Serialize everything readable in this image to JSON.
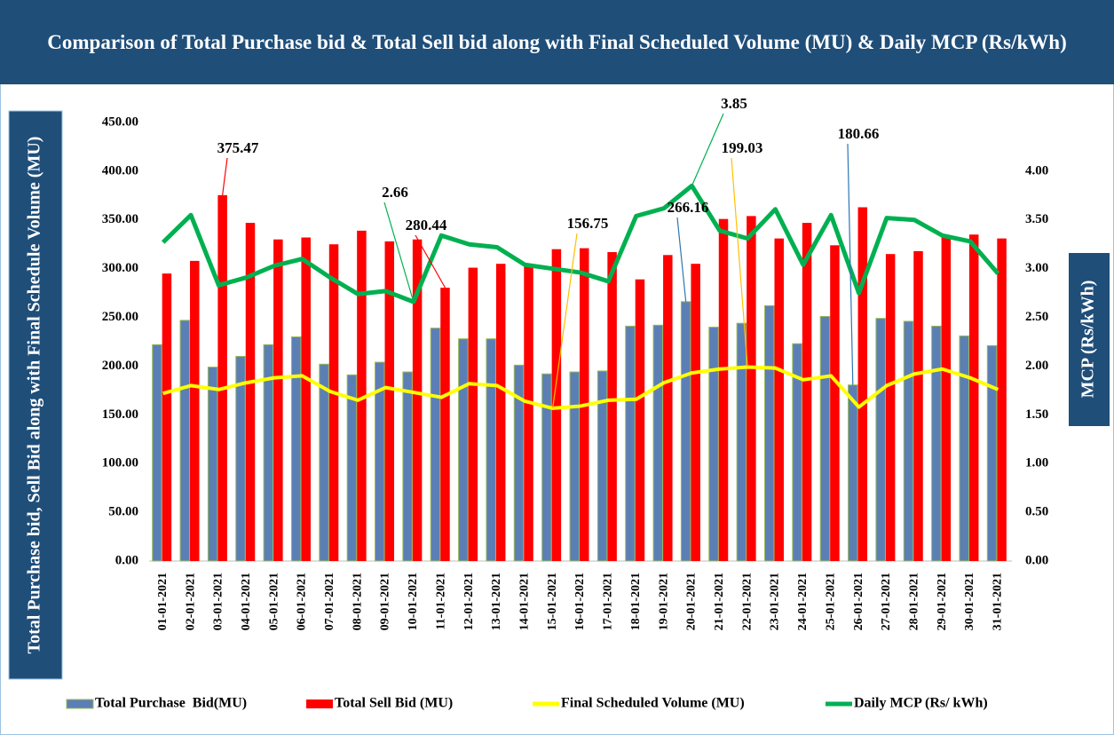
{
  "chart_data": {
    "type": "bar_line",
    "title": "Comparison of Total Purchase bid & Total Sell bid along with Final Scheduled Volume (MU) & Daily MCP (Rs/kWh)",
    "ylabel": "Total Purchase bid, Sell Bid along with Final Schedule Volume (MU)",
    "y2label": "MCP (Rs/kWh)",
    "categories": [
      "01-01-2021",
      "02-01-2021",
      "03-01-2021",
      "04-01-2021",
      "05-01-2021",
      "06-01-2021",
      "07-01-2021",
      "08-01-2021",
      "09-01-2021",
      "10-01-2021",
      "11-01-2021",
      "12-01-2021",
      "13-01-2021",
      "14-01-2021",
      "15-01-2021",
      "16-01-2021",
      "17-01-2021",
      "18-01-2021",
      "19-01-2021",
      "20-01-2021",
      "21-01-2021",
      "22-01-2021",
      "23-01-2021",
      "24-01-2021",
      "25-01-2021",
      "26-01-2021",
      "27-01-2021",
      "28-01-2021",
      "29-01-2021",
      "30-01-2021",
      "31-01-2021"
    ],
    "series": [
      {
        "name": "Total Purchase  Bid(MU)",
        "kind": "bar",
        "color": "#5b7fb5",
        "values": [
          222,
          247,
          199,
          210,
          222,
          230,
          202,
          191,
          204,
          194,
          239,
          228,
          228,
          201,
          192,
          194,
          195,
          241,
          242,
          266.16,
          240,
          244,
          262,
          223,
          251,
          180.66,
          249,
          246,
          241,
          231,
          221
        ]
      },
      {
        "name": "Total Sell Bid (MU)",
        "kind": "bar",
        "color": "#ff0000",
        "values": [
          295,
          308,
          375.47,
          347,
          330,
          332,
          325,
          339,
          328,
          330,
          280.44,
          301,
          305,
          304,
          320,
          321,
          317,
          289,
          314,
          305,
          351,
          354,
          331,
          347,
          324,
          363,
          315,
          318,
          333,
          335,
          331
        ]
      },
      {
        "name": "Final Scheduled Volume (MU)",
        "kind": "line",
        "color": "#ffff00",
        "values": [
          172,
          180,
          176,
          183,
          188,
          190,
          174,
          165,
          178,
          173,
          168,
          182,
          180,
          164,
          156.75,
          159,
          165,
          166,
          183,
          193,
          197,
          199.03,
          198,
          186,
          190,
          158,
          180,
          192,
          197,
          188,
          176
        ]
      },
      {
        "name": "Daily MCP (Rs/ kWh)",
        "kind": "line",
        "axis": "y2",
        "color": "#00b050",
        "values": [
          3.27,
          3.55,
          2.83,
          2.91,
          3.03,
          3.1,
          2.91,
          2.74,
          2.77,
          2.66,
          3.34,
          3.25,
          3.22,
          3.04,
          3.0,
          2.96,
          2.87,
          3.54,
          3.62,
          3.85,
          3.39,
          3.31,
          3.61,
          3.04,
          3.55,
          2.75,
          3.52,
          3.5,
          3.34,
          3.28,
          2.95
        ]
      }
    ],
    "ylim": [
      0,
      450
    ],
    "yticks": [
      {
        "value": 0,
        "label": "0.00"
      },
      {
        "value": 50,
        "label": "50.00"
      },
      {
        "value": 100,
        "label": "100.00"
      },
      {
        "value": 150,
        "label": "150.00"
      },
      {
        "value": 200,
        "label": "200.00"
      },
      {
        "value": 250,
        "label": "250.00"
      },
      {
        "value": 300,
        "label": "300.00"
      },
      {
        "value": 350,
        "label": "350.00"
      },
      {
        "value": 400,
        "label": "400.00"
      },
      {
        "value": 450,
        "label": "450.00"
      }
    ],
    "y2lim": [
      0,
      4.5
    ],
    "y2ticks": [
      {
        "value": 0,
        "label": "0.00"
      },
      {
        "value": 0.5,
        "label": "0.50"
      },
      {
        "value": 1,
        "label": "1.00"
      },
      {
        "value": 1.5,
        "label": "1.50"
      },
      {
        "value": 2,
        "label": "2.00"
      },
      {
        "value": 2.5,
        "label": "2.50"
      },
      {
        "value": 3,
        "label": "3.00"
      },
      {
        "value": 3.5,
        "label": "3.50"
      },
      {
        "value": 4,
        "label": "4.00"
      }
    ],
    "legend": "bottom"
  }
}
